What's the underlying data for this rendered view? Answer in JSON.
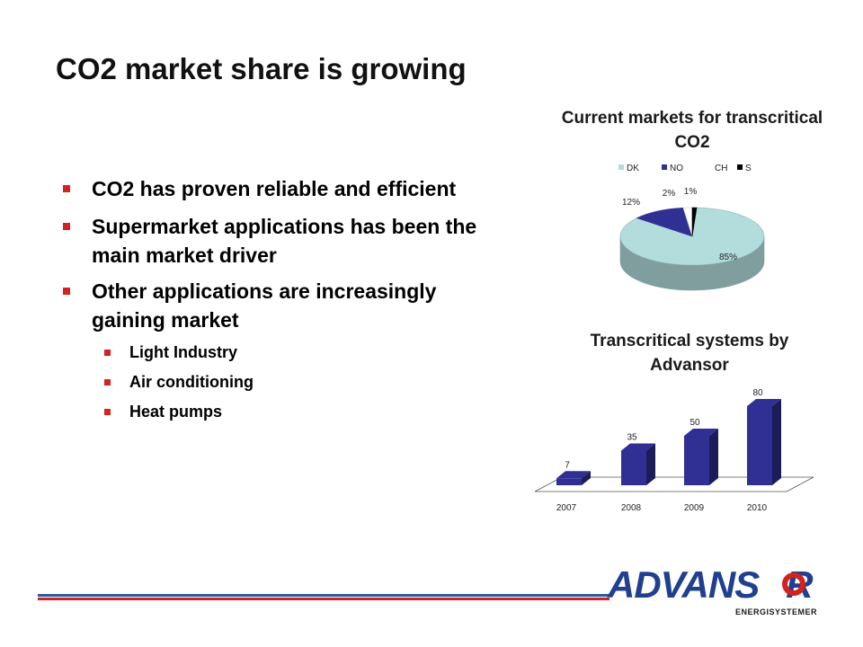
{
  "slide": {
    "title": "CO2 market share is growing",
    "bullets": [
      {
        "level": 1,
        "text": "CO2 has proven reliable and efficient"
      },
      {
        "level": 1,
        "text": "Supermarket applications has been the main market driver"
      },
      {
        "level": 1,
        "text": "Other applications are increasingly gaining market"
      },
      {
        "level": 2,
        "text": "Light Industry"
      },
      {
        "level": 2,
        "text": "Air conditioning"
      },
      {
        "level": 2,
        "text": "Heat pumps"
      }
    ],
    "logo": {
      "word": "ADVANS",
      "letter_r": "R",
      "sub": "ENERGISYSTEMER",
      "brand_color": "#1f3f8f",
      "accent_color": "#d2231f"
    }
  },
  "chart_data": [
    {
      "type": "pie",
      "title": "Current markets for transcritical CO2",
      "legend": [
        "DK",
        "NO",
        "CH",
        "S"
      ],
      "legend_position": "top",
      "values": [
        85,
        12,
        2,
        1
      ],
      "labels": [
        "85%",
        "12%",
        "2%",
        "1%"
      ],
      "colors": [
        "#b3dcdd",
        "#2f2f94",
        "#ffffff",
        "#000000"
      ]
    },
    {
      "type": "bar",
      "title": "Transcritical systems by Advansor",
      "categories": [
        "2007",
        "2008",
        "2009",
        "2010"
      ],
      "values": [
        7,
        35,
        50,
        80
      ],
      "labels": [
        "7",
        "35",
        "50",
        "80"
      ],
      "color": "#2f2f94"
    }
  ]
}
